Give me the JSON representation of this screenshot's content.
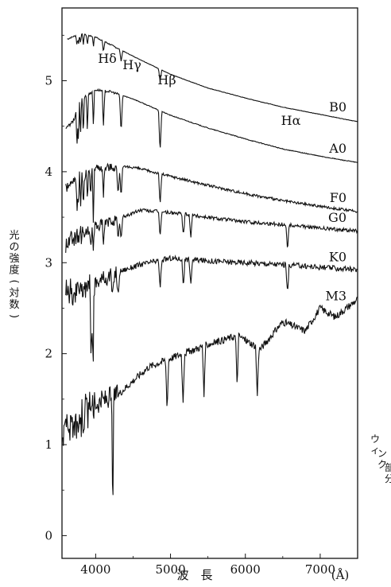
{
  "chart_data": {
    "type": "line",
    "xlabel": "波　長",
    "x_unit": "(Å)",
    "ylabel": "光の強度(対数)",
    "xlim": [
      3550,
      7500
    ],
    "ylim": [
      -0.25,
      5.8
    ],
    "xticks": [
      4000,
      5000,
      6000,
      7000
    ],
    "yticks": [
      0,
      1,
      2,
      3,
      4,
      5
    ],
    "grid": false,
    "line_labels": [
      {
        "text": "Hδ",
        "x": 4102
      },
      {
        "text": "Hγ",
        "x": 4340
      },
      {
        "text": "Hβ",
        "x": 4861
      },
      {
        "text": "Hα",
        "x": 6563
      }
    ],
    "series": [
      {
        "name": "B0",
        "x": [
          3600,
          3800,
          4000,
          4500,
          5000,
          5500,
          6000,
          6500,
          7000,
          7500
        ],
        "y": [
          5.45,
          5.52,
          5.48,
          5.27,
          5.07,
          4.92,
          4.81,
          4.71,
          4.63,
          4.55
        ]
      },
      {
        "name": "A0",
        "x": [
          3600,
          3700,
          3800,
          4000,
          4200,
          4500,
          5000,
          5500,
          6000,
          6500,
          7000,
          7500
        ],
        "y": [
          4.48,
          4.55,
          4.8,
          4.9,
          4.88,
          4.8,
          4.62,
          4.48,
          4.36,
          4.25,
          4.17,
          4.1
        ]
      },
      {
        "name": "F0",
        "x": [
          3600,
          3800,
          4000,
          4500,
          5000,
          5500,
          6000,
          6500,
          7000,
          7500
        ],
        "y": [
          3.82,
          3.95,
          4.05,
          4.05,
          3.95,
          3.85,
          3.76,
          3.68,
          3.62,
          3.56
        ]
      },
      {
        "name": "G0",
        "x": [
          3600,
          3800,
          4000,
          4300,
          4600,
          5000,
          5500,
          6000,
          6500,
          7000,
          7500
        ],
        "y": [
          3.2,
          3.3,
          3.4,
          3.48,
          3.58,
          3.55,
          3.5,
          3.45,
          3.42,
          3.38,
          3.35
        ]
      },
      {
        "name": "K0",
        "x": [
          3600,
          3800,
          4000,
          4300,
          4600,
          5000,
          5500,
          6000,
          6500,
          7000,
          7500
        ],
        "y": [
          2.65,
          2.72,
          2.78,
          2.9,
          2.98,
          3.05,
          3.02,
          3.0,
          2.98,
          2.95,
          2.92
        ]
      },
      {
        "name": "M3",
        "x": [
          3550,
          3800,
          4000,
          4300,
          4700,
          5000,
          5500,
          5900,
          6200,
          6500,
          6800,
          7000,
          7200,
          7500
        ],
        "y": [
          1.15,
          1.3,
          1.45,
          1.55,
          1.85,
          1.95,
          2.1,
          2.2,
          2.05,
          2.35,
          2.25,
          2.5,
          2.4,
          2.6
        ]
      }
    ]
  },
  "side_text": "ウィンク部分"
}
